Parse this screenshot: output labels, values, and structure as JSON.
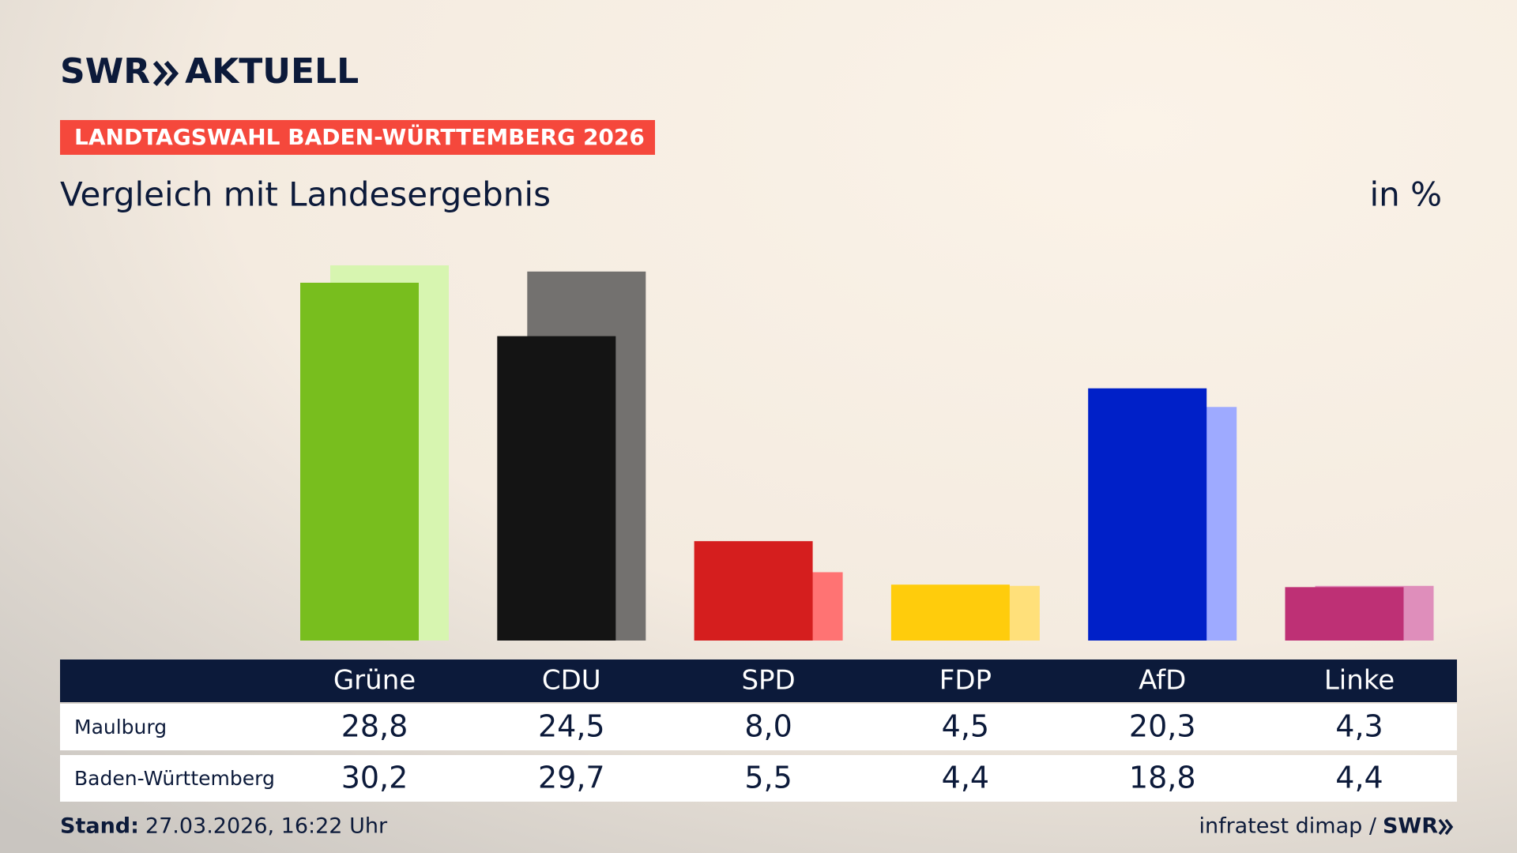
{
  "header": {
    "brand": "SWR",
    "brand_name": "AKTUELL",
    "kicker": "LANDTAGSWAHL BADEN-WÜRTTEMBERG 2026"
  },
  "chart_data": {
    "type": "bar",
    "title": "Vergleich mit Landesergebnis",
    "unit": "in %",
    "categories": [
      "Grüne",
      "CDU",
      "SPD",
      "FDP",
      "AfD",
      "Linke"
    ],
    "series": [
      {
        "name": "Maulburg",
        "colors": [
          "#78be1e",
          "#141414",
          "#d51e1e",
          "#ffcc0c",
          "#0020c8",
          "#be3075"
        ],
        "values": [
          28.8,
          24.5,
          8.0,
          4.5,
          20.3,
          4.3
        ],
        "value_labels": [
          "28,8",
          "24,5",
          "8,0",
          "4,5",
          "20,3",
          "4,3"
        ]
      },
      {
        "name": "Baden-Württemberg",
        "colors": [
          "#d7f5b0",
          "#73716f",
          "#ff7373",
          "#ffe07a",
          "#9eaaff",
          "#df8ebb"
        ],
        "values": [
          30.2,
          29.7,
          5.5,
          4.4,
          18.8,
          4.4
        ],
        "value_labels": [
          "30,2",
          "29,7",
          "5,5",
          "4,4",
          "18,8",
          "4,4"
        ]
      }
    ],
    "ylim": [
      0,
      35
    ]
  },
  "footer": {
    "stand_label": "Stand:",
    "stand": "27.03.2026, 16:22 Uhr",
    "source": "infratest dimap /",
    "source_logo": "SWR"
  }
}
